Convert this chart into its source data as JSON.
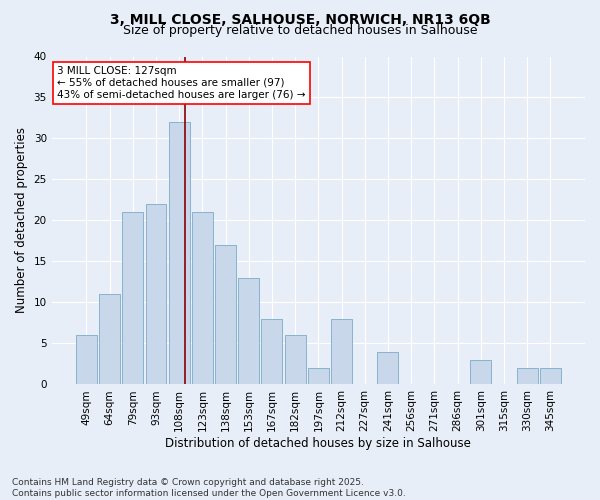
{
  "title1": "3, MILL CLOSE, SALHOUSE, NORWICH, NR13 6QB",
  "title2": "Size of property relative to detached houses in Salhouse",
  "xlabel": "Distribution of detached houses by size in Salhouse",
  "ylabel": "Number of detached properties",
  "categories": [
    "49sqm",
    "64sqm",
    "79sqm",
    "93sqm",
    "108sqm",
    "123sqm",
    "138sqm",
    "153sqm",
    "167sqm",
    "182sqm",
    "197sqm",
    "212sqm",
    "227sqm",
    "241sqm",
    "256sqm",
    "271sqm",
    "286sqm",
    "301sqm",
    "315sqm",
    "330sqm",
    "345sqm"
  ],
  "values": [
    6,
    11,
    21,
    22,
    32,
    21,
    17,
    13,
    8,
    6,
    2,
    8,
    0,
    4,
    0,
    0,
    0,
    3,
    0,
    2,
    2
  ],
  "bar_color": "#c8d8ea",
  "bar_edge_color": "#7aaac8",
  "annotation_text": "3 MILL CLOSE: 127sqm\n← 55% of detached houses are smaller (97)\n43% of semi-detached houses are larger (76) →",
  "annotation_box_color": "white",
  "annotation_box_edge": "red",
  "vline_color": "darkred",
  "vline_x": 4.27,
  "ylim": [
    0,
    40
  ],
  "yticks": [
    0,
    5,
    10,
    15,
    20,
    25,
    30,
    35,
    40
  ],
  "footer": "Contains HM Land Registry data © Crown copyright and database right 2025.\nContains public sector information licensed under the Open Government Licence v3.0.",
  "bg_color": "#e8eef8",
  "plot_bg_color": "#e8eef8",
  "title1_fontsize": 10,
  "title2_fontsize": 9,
  "xlabel_fontsize": 8.5,
  "ylabel_fontsize": 8.5,
  "tick_fontsize": 7.5,
  "footer_fontsize": 6.5,
  "annot_fontsize": 7.5
}
